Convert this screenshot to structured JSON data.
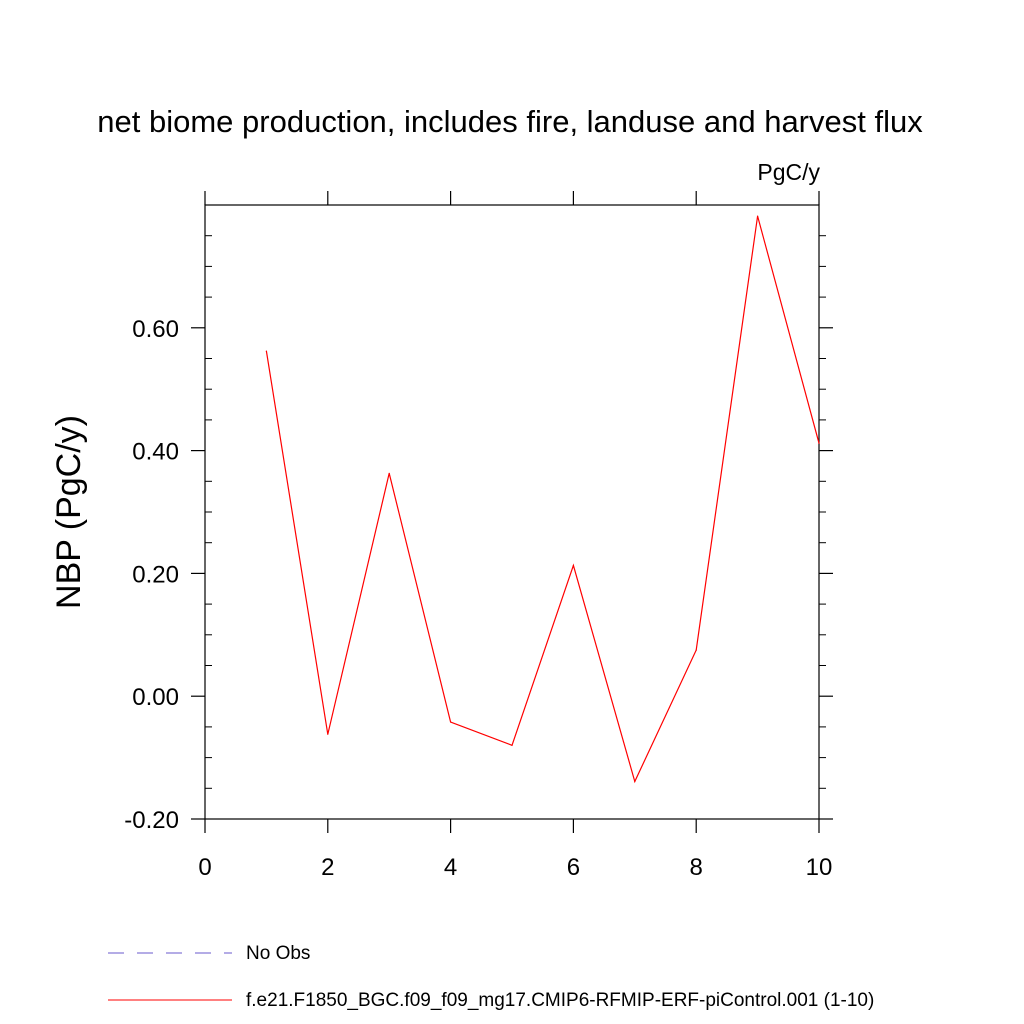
{
  "chart_data": {
    "type": "line",
    "title": "net biome production, includes fire, landuse and harvest flux",
    "units_label": "PgC/y",
    "xlabel": "",
    "ylabel": "NBP  (PgC/y)",
    "xlim": [
      0,
      10
    ],
    "ylim": [
      -0.2,
      0.8
    ],
    "x_ticks": [
      0,
      2,
      4,
      6,
      8,
      10
    ],
    "x_tick_labels": [
      "0",
      "2",
      "4",
      "6",
      "8",
      "10"
    ],
    "y_ticks": [
      -0.2,
      0.0,
      0.2,
      0.4,
      0.6
    ],
    "y_tick_labels": [
      "-0.20",
      "0.00",
      "0.20",
      "0.40",
      "0.60"
    ],
    "grid": false,
    "legend_position": "bottom",
    "series": [
      {
        "name": "f.e21.F1850_BGC.f09_f09_mg17.CMIP6-RFMIP-ERF-piControl.001 (1-10)",
        "color": "#ff0000",
        "style": "solid",
        "x": [
          1,
          2,
          3,
          4,
          5,
          6,
          7,
          8,
          9,
          10
        ],
        "y": [
          0.562,
          -0.062,
          0.363,
          -0.042,
          -0.08,
          0.213,
          -0.139,
          0.075,
          0.782,
          0.412
        ]
      }
    ],
    "legend": [
      {
        "label": "No Obs",
        "color": "#6a5acd",
        "style": "dashed"
      },
      {
        "label": "f.e21.F1850_BGC.f09_f09_mg17.CMIP6-RFMIP-ERF-piControl.001 (1-10)",
        "color": "#ff0000",
        "style": "solid"
      }
    ]
  }
}
